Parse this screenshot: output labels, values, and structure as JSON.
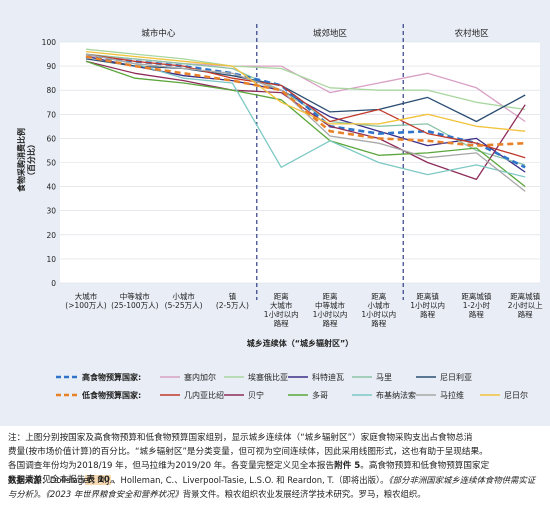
{
  "chart_data": {
    "type": "line",
    "ylabel": "食物采购消费比例\n（百分比）",
    "xlabel": "城乡连续体（“城乡辐射区”）",
    "ylim": [
      0,
      100
    ],
    "yticks": [
      0,
      10,
      20,
      30,
      40,
      50,
      60,
      70,
      80,
      90,
      100
    ],
    "regions": [
      "城市中心",
      "城郊地区",
      "农村地区"
    ],
    "categories": [
      "大城市\n(>100万人)",
      "中等城市\n(25-100万人)",
      "小城市\n(5-25万人)",
      "镇\n(2-5万人)",
      "距离\n大城市\n1小时以内\n路程",
      "距离\n中等城市\n1小时以内\n路程",
      "距离\n小城市\n1小时以内\n路程",
      "距离镇\n1小时以内\n路程",
      "距离城镇\n1-2小时\n路程",
      "距离城镇\n2小时以上\n路程"
    ],
    "legend": {
      "high_label": "高食物预算国家:",
      "low_label": "低食物预算国家:"
    },
    "series": [
      {
        "name": "塞内加尔",
        "group": "high",
        "color": "#d9a0c4",
        "values": [
          94,
          93,
          91,
          90,
          90,
          79,
          83,
          87,
          81,
          67
        ]
      },
      {
        "name": "埃塞俄比亚",
        "group": "high",
        "color": "#a9d6a0",
        "values": [
          97,
          95,
          93,
          90,
          89,
          81,
          80,
          80,
          75,
          72
        ]
      },
      {
        "name": "科特迪瓦",
        "group": "high",
        "color": "#3a2d86",
        "values": [
          94,
          90,
          86,
          84,
          80,
          69,
          63,
          57,
          60,
          46
        ]
      },
      {
        "name": "马里",
        "group": "high",
        "color": "#8cc3a8",
        "values": [
          95,
          93,
          91,
          89,
          80,
          67,
          65,
          66,
          55,
          49
        ]
      },
      {
        "name": "尼日利亚",
        "group": "high",
        "color": "#2b4e72",
        "values": [
          93,
          90,
          89,
          86,
          82,
          71,
          72,
          77,
          67,
          78
        ]
      },
      {
        "name": "高食物预算国家平均",
        "group": "high-avg",
        "color": "#2e75c9",
        "dashed": true,
        "values": [
          94,
          92,
          90,
          87,
          82,
          65,
          62,
          63,
          58,
          48
        ]
      },
      {
        "name": "几内亚比绍",
        "group": "low",
        "color": "#c0392b",
        "values": [
          95,
          92,
          90,
          85,
          82,
          67,
          72,
          62,
          58,
          52
        ]
      },
      {
        "name": "贝宁",
        "group": "low",
        "color": "#8e2c5a",
        "values": [
          92,
          87,
          84,
          80,
          79,
          65,
          60,
          50,
          43,
          74
        ]
      },
      {
        "name": "多哥",
        "group": "low",
        "color": "#5ba63c",
        "values": [
          92,
          85,
          83,
          80,
          76,
          59,
          53,
          54,
          56,
          40
        ]
      },
      {
        "name": "布基纳法索",
        "group": "low",
        "color": "#7ec9c4",
        "values": [
          95,
          91,
          85,
          83,
          48,
          59,
          50,
          45,
          49,
          44
        ]
      },
      {
        "name": "马拉维",
        "group": "low",
        "color": "#a8a8a8",
        "values": [
          95,
          91,
          89,
          87,
          80,
          61,
          58,
          52,
          54,
          38
        ]
      },
      {
        "name": "尼日尔",
        "group": "low",
        "color": "#f2c23a",
        "values": [
          96,
          94,
          92,
          90,
          75,
          66,
          66,
          70,
          65,
          63
        ]
      },
      {
        "name": "低食物预算国家平均",
        "group": "low-avg",
        "color": "#e8822a",
        "dashed": true,
        "values": [
          94,
          90,
          87,
          84,
          80,
          63,
          60,
          59,
          57,
          58
        ]
      }
    ]
  },
  "note": {
    "line1": "注：上图分别按国家及高食物预算和低食物预算国家组别，显示城乡连续体（“城乡辐射区”）家庭食物采购支出占食物总消",
    "line2": "费量(按市场价值计算)的百分比。“城乡辐射区”是分类变量，但可视为空间连续体，因此采用线图形式，这也有助于呈现结果。",
    "line3_a": "各国调查年份均为2018/19 年，但马拉维为2019/20 年。各变量完整定义见全本报告",
    "line3_b": "附件 5",
    "line3_c": "。高食物预算和低食物预算国家定",
    "line4_a": "义和清单见全本报告",
    "line4_b": "表 10",
    "line4_c": "。",
    "source_label": "数据来源：",
    "source_text": "Dolislager, M.J.、Holleman, C.、Liverpool-Tasie, L.S.O. 和 Reardon, T.（即将出版）。",
    "source_italic": "《部分非洲国家城乡连续体食物供需实证与分析》",
    "source_text2": "。",
    "source_italic2": "《2023 年世界粮食安全和营养状况》",
    "source_text3": "背景文件。粮农组织农业发展经济学技术研究。罗马，粮农组织。"
  }
}
